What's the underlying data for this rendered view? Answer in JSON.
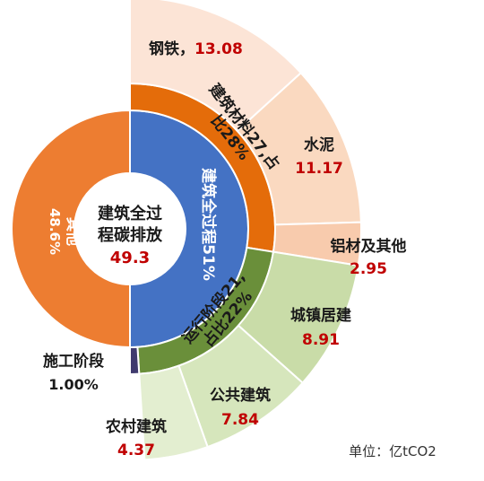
{
  "chart_data": {
    "type": "sunburst",
    "colors": {
      "other": "#ED7D31",
      "whole_process": "#4472C4",
      "construction": "#3F3A6E",
      "materials": "#E46C0A",
      "operation": "#6A8F3A",
      "steel": "#FCE4D6",
      "cement": "#FAD9C0",
      "aluminum": "#F8CBAD",
      "urban": "#C9DCA8",
      "public": "#D6E6BC",
      "rural": "#E3EED0"
    },
    "center": {
      "line1": "建筑全过",
      "line2": "程碳排放",
      "value": "49.3"
    },
    "inner_ring": [
      {
        "key": "other",
        "name": "其他",
        "pct_label": "48.6%",
        "value": 48.6
      },
      {
        "key": "whole_process",
        "name": "建筑全过程51%",
        "value": 51.4
      }
    ],
    "middle_ring": [
      {
        "key": "materials",
        "line1": "建筑材料27,占",
        "line2": "比28%",
        "value": 27.2
      },
      {
        "key": "operation",
        "line1": "运行阶段21,",
        "line2": "占比22%",
        "value": 21.2
      },
      {
        "key": "construction",
        "value": 1.0
      }
    ],
    "outer_ring": [
      {
        "key": "steel",
        "name": "钢铁，",
        "value_label": "13.08",
        "value": 13.08
      },
      {
        "key": "cement",
        "name": "水泥",
        "value_label": "11.17",
        "value": 11.17
      },
      {
        "key": "aluminum",
        "name": "铝材及其他",
        "value_label": "2.95",
        "value": 2.95
      },
      {
        "key": "urban",
        "name": "城镇居建",
        "value_label": "8.91",
        "value": 8.91
      },
      {
        "key": "public",
        "name": "公共建筑",
        "value_label": "7.84",
        "value": 7.84
      },
      {
        "key": "rural",
        "name": "农村建筑",
        "value_label": "4.37",
        "value": 4.37
      }
    ],
    "construction_label": {
      "name": "施工阶段",
      "value_label": "1.00%"
    },
    "unit_label": "单位：亿tCO2"
  }
}
